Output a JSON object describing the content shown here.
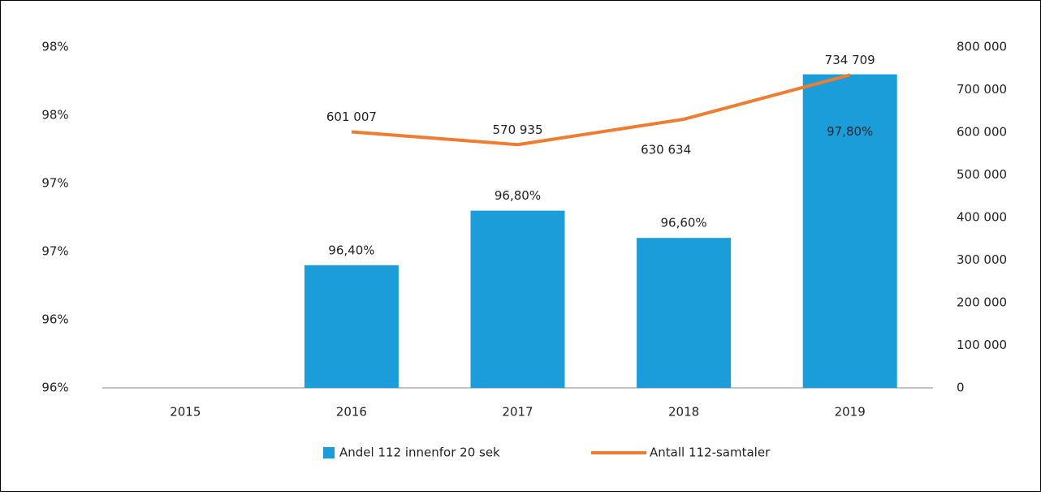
{
  "chart_data": {
    "type": "bar",
    "categories": [
      "2015",
      "2016",
      "2017",
      "2018",
      "2019"
    ],
    "series": [
      {
        "name": "Andel 112 innenfor 20 sek",
        "type": "bar",
        "color": "#1b9dd9",
        "axis": "y",
        "values": [
          null,
          96.4,
          96.8,
          96.6,
          97.8
        ],
        "value_labels": [
          null,
          "96,40%",
          "96,80%",
          "96,60%",
          "97,80%"
        ]
      },
      {
        "name": "Antall 112-samtaler",
        "type": "line",
        "color": "#ef7d31",
        "axis": "y2",
        "values": [
          null,
          601007,
          570935,
          630634,
          734709
        ],
        "value_labels": [
          null,
          "601 007",
          "570 935",
          "630 634",
          "734 709"
        ]
      }
    ],
    "ylim": [
      95.5,
      98
    ],
    "yticks": [
      {
        "value": 95.5,
        "label": "96%"
      },
      {
        "value": 96,
        "label": "96%"
      },
      {
        "value": 96.5,
        "label": "97%"
      },
      {
        "value": 97,
        "label": "97%"
      },
      {
        "value": 97.5,
        "label": "98%"
      },
      {
        "value": 98,
        "label": "98%"
      }
    ],
    "y2lim": [
      0,
      800000
    ],
    "y2ticks": [
      0,
      {
        "value": 100000,
        "label": "100 000"
      },
      {
        "value": 200000,
        "label": "200 000"
      },
      {
        "value": 300000,
        "label": "300 000"
      },
      {
        "value": 400000,
        "label": "400 000"
      },
      {
        "value": 500000,
        "label": "500 000"
      },
      {
        "value": 600000,
        "label": "600 000"
      },
      {
        "value": 700000,
        "label": "700 000"
      },
      {
        "value": 800000,
        "label": "800 000"
      }
    ],
    "legend": "bottom"
  }
}
